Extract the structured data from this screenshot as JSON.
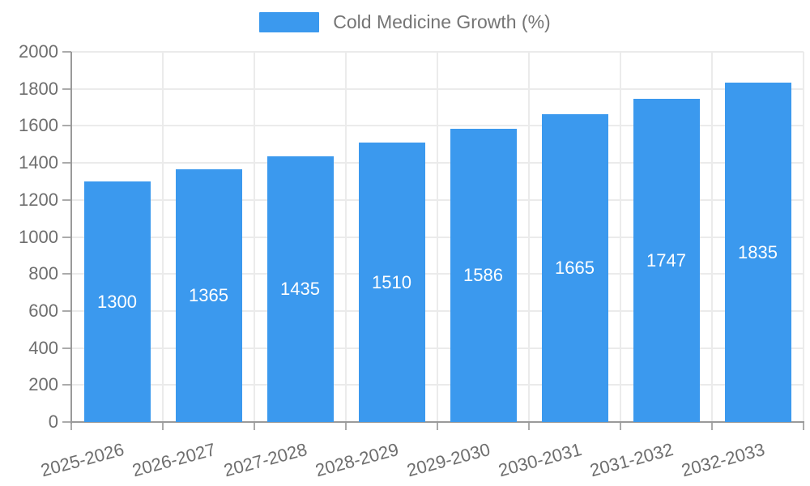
{
  "legend": {
    "label": "Cold Medicine Growth (%)"
  },
  "chart_data": {
    "type": "bar",
    "title": "Cold Medicine Growth (%)",
    "categories": [
      "2025-2026",
      "2026-2027",
      "2027-2028",
      "2028-2029",
      "2029-2030",
      "2030-2031",
      "2031-2032",
      "2032-2033"
    ],
    "values": [
      1300,
      1365,
      1435,
      1510,
      1586,
      1665,
      1747,
      1835
    ],
    "bar_value_labels": [
      "1300",
      "1365",
      "1435",
      "1510",
      "1586",
      "1665",
      "1747",
      "1835"
    ],
    "xlabel": "",
    "ylabel": "",
    "ylim": [
      0,
      2000
    ],
    "yticks": [
      0,
      200,
      400,
      600,
      800,
      1000,
      1200,
      1400,
      1600,
      1800,
      2000
    ],
    "legend_position": "top-center",
    "grid": true,
    "xtick_rotation_deg": -15,
    "colors": {
      "bar": "#3B99EE",
      "bar_label": "#FFFFFF",
      "axis_text": "#6E6E6E",
      "legend_text": "#757575",
      "grid_line": "#EBEBEB",
      "tick_line": "#ABABAB",
      "axis_line": "#9A9A9A",
      "background": "#FFFFFF"
    }
  }
}
